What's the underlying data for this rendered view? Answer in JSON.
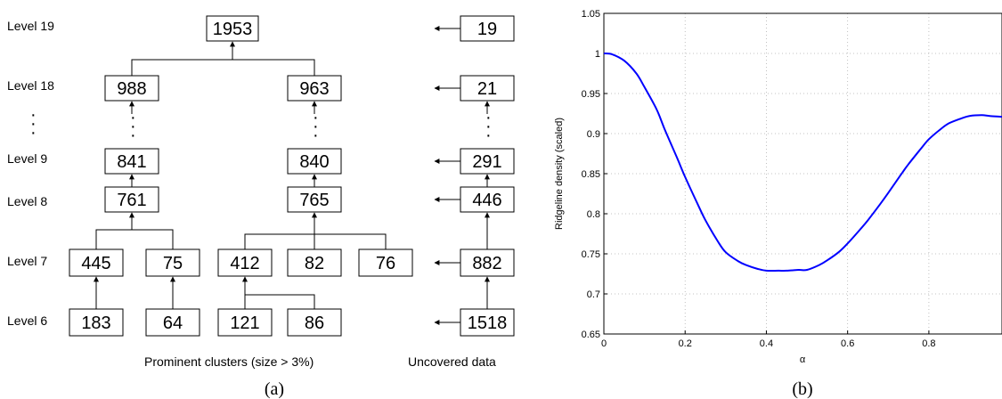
{
  "panel_a": {
    "level_labels": [
      "Level 19",
      "Level 18",
      "Level 9",
      "Level 8",
      "Level 7",
      "Level 6"
    ],
    "level19": {
      "root": "1953",
      "uncovered": "19"
    },
    "level18": {
      "left": "988",
      "right": "963",
      "uncovered": "21"
    },
    "level9": {
      "left": "841",
      "right": "840",
      "uncovered": "291"
    },
    "level8": {
      "left": "761",
      "right": "765",
      "uncovered": "446"
    },
    "level7": {
      "a": "445",
      "b": "75",
      "c": "412",
      "d": "82",
      "e": "76",
      "uncovered": "882"
    },
    "level6": {
      "a": "183",
      "b": "64",
      "c": "121",
      "d": "86",
      "uncovered": "1518"
    },
    "footer_prominent": "Prominent clusters (size > 3%)",
    "footer_uncovered": "Uncovered data",
    "caption": "(a)"
  },
  "panel_b": {
    "caption": "(b)"
  },
  "chart_data": {
    "type": "line",
    "xlabel": "α",
    "ylabel": "Ridgeline density (scaled)",
    "xlim": [
      0,
      0.98
    ],
    "ylim": [
      0.65,
      1.05
    ],
    "xticks": [
      "0",
      "0.2",
      "0.4",
      "0.6",
      "0.8"
    ],
    "yticks": [
      "0.65",
      "0.7",
      "0.75",
      "0.8",
      "0.85",
      "0.9",
      "0.95",
      "1",
      "1.05"
    ],
    "grid": true,
    "color": "#0000ff",
    "series": [
      {
        "x": [
          0,
          0.02,
          0.05,
          0.08,
          0.1,
          0.13,
          0.15,
          0.18,
          0.2,
          0.23,
          0.25,
          0.28,
          0.3,
          0.33,
          0.35,
          0.38,
          0.4,
          0.43,
          0.45,
          0.48,
          0.5,
          0.53,
          0.55,
          0.58,
          0.6,
          0.63,
          0.65,
          0.68,
          0.7,
          0.73,
          0.75,
          0.78,
          0.8,
          0.83,
          0.85,
          0.88,
          0.9,
          0.93,
          0.95,
          0.98
        ],
        "values": [
          1.0,
          0.999,
          0.991,
          0.975,
          0.958,
          0.93,
          0.905,
          0.87,
          0.846,
          0.813,
          0.792,
          0.766,
          0.752,
          0.741,
          0.736,
          0.731,
          0.729,
          0.729,
          0.729,
          0.73,
          0.73,
          0.736,
          0.742,
          0.753,
          0.763,
          0.78,
          0.792,
          0.812,
          0.826,
          0.848,
          0.862,
          0.881,
          0.893,
          0.906,
          0.913,
          0.919,
          0.922,
          0.923,
          0.922,
          0.921
        ]
      }
    ]
  }
}
